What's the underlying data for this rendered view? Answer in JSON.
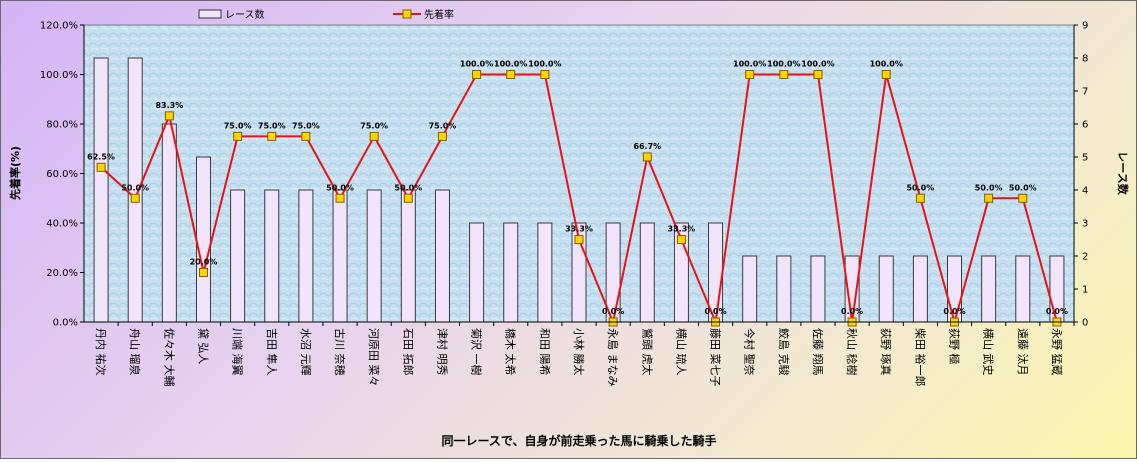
{
  "chart_data": {
    "type": "bar+line",
    "title": "",
    "xlabel": "同一レースで、自身が前走乗った馬に騎乗した騎手",
    "ylabel_left": "先着率(%)",
    "ylabel_right": "レース数",
    "legend": {
      "bar_label": "レース数",
      "line_label": "先着率",
      "placement": "top"
    },
    "y_left": {
      "min": 0,
      "max": 120,
      "ticks": [
        "0.0%",
        "20.0%",
        "40.0%",
        "60.0%",
        "80.0%",
        "100.0%",
        "120.0%"
      ]
    },
    "y_right": {
      "min": 0,
      "max": 9,
      "ticks": [
        "0",
        "1",
        "2",
        "3",
        "4",
        "5",
        "6",
        "7",
        "8",
        "9"
      ]
    },
    "categories": [
      "丹内 祐次",
      "舟山 瑠泉",
      "佐々木 大輔",
      "黛 弘人",
      "川端 海翼",
      "吉田 隼人",
      "水沼 元輝",
      "古川 奈穂",
      "河原田 菜々",
      "石田 拓郎",
      "津村 明秀",
      "菊沢 一樹",
      "橋木 太希",
      "和田 陽希",
      "小林 勝太",
      "永島 まなみ",
      "鷲頭 虎太",
      "横山 琉人",
      "藤田 菜七子",
      "今村 聖奈",
      "鮫島 克駿",
      "佐藤 翔馬",
      "秋山 稔樹",
      "荻野 琢真",
      "柴田 裕一郎",
      "荻野 極",
      "横山 武史",
      "遠藤 汰月",
      "永野 猛蔵"
    ],
    "series": [
      {
        "name": "レース数",
        "kind": "bar",
        "values": [
          8,
          8,
          6,
          5,
          4,
          4,
          4,
          4,
          4,
          4,
          4,
          3,
          3,
          3,
          3,
          3,
          3,
          3,
          3,
          2,
          2,
          2,
          2,
          2,
          2,
          2,
          2,
          2,
          2
        ]
      },
      {
        "name": "先着率",
        "kind": "line",
        "values": [
          62.5,
          50.0,
          83.3,
          20.0,
          75.0,
          75.0,
          75.0,
          50.0,
          75.0,
          50.0,
          75.0,
          100.0,
          100.0,
          100.0,
          33.3,
          0.0,
          66.7,
          33.3,
          0.0,
          100.0,
          100.0,
          100.0,
          0.0,
          100.0,
          50.0,
          0.0,
          50.0,
          50.0,
          0.0
        ],
        "labels": [
          "62.5%",
          "50.0%",
          "83.3%",
          "20.0%",
          "75.0%",
          "75.0%",
          "75.0%",
          "50.0%",
          "75.0%",
          "50.0%",
          "75.0%",
          "100.0%",
          "100.0%",
          "100.0%",
          "33.3%",
          "0.0%",
          "66.7%",
          "33.3%",
          "0.0%",
          "100.0%",
          "100.0%",
          "100.0%",
          "0.0%",
          "100.0%",
          "50.0%",
          "0.0%",
          "50.0%",
          "50.0%",
          "0.0%"
        ]
      }
    ],
    "grid": "none",
    "colors": {
      "bar_fill": "#f1e4fb",
      "bar_stroke": "#3a3a3a",
      "line": "#ee1111",
      "marker": "#ffd400",
      "marker_stroke": "#806000",
      "plot_bg": "#bcd8ec"
    }
  }
}
